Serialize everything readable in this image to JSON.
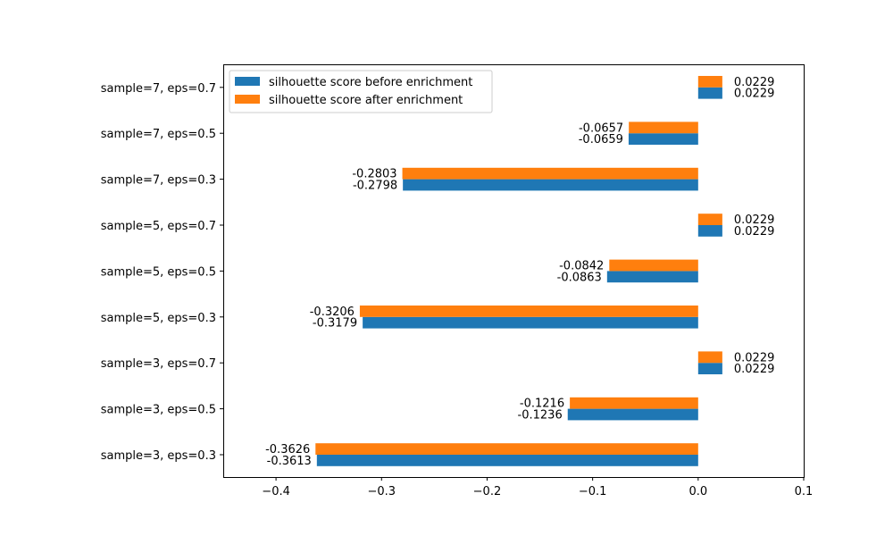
{
  "chart_data": {
    "type": "bar",
    "orientation": "horizontal",
    "title": "",
    "xlabel": "",
    "ylabel": "",
    "xlim": [
      -0.45,
      0.1
    ],
    "x_ticks": [
      -0.4,
      -0.3,
      -0.2,
      -0.1,
      0.0,
      0.1
    ],
    "x_tick_labels": [
      "−0.4",
      "−0.3",
      "−0.2",
      "−0.1",
      "0.0",
      "0.1"
    ],
    "grid": false,
    "legend_position": "top-left",
    "categories": [
      "sample=3, eps=0.3",
      "sample=3, eps=0.5",
      "sample=3, eps=0.7",
      "sample=5, eps=0.3",
      "sample=5, eps=0.5",
      "sample=5, eps=0.7",
      "sample=7, eps=0.3",
      "sample=7, eps=0.5",
      "sample=7, eps=0.7"
    ],
    "series": [
      {
        "name": "silhouette score before enrichment",
        "color": "#1f77b4",
        "values": [
          -0.3613,
          -0.1236,
          0.0229,
          -0.3179,
          -0.0863,
          0.0229,
          -0.2798,
          -0.0659,
          0.0229
        ],
        "labels": [
          "-0.3613",
          "-0.1236",
          "0.0229",
          "-0.3179",
          "-0.0863",
          "0.0229",
          "-0.2798",
          "-0.0659",
          "0.0229"
        ]
      },
      {
        "name": "silhouette score after enrichment",
        "color": "#ff7f0e",
        "values": [
          -0.3626,
          -0.1216,
          0.0229,
          -0.3206,
          -0.0842,
          0.0229,
          -0.2803,
          -0.0657,
          0.0229
        ],
        "labels": [
          "-0.3626",
          "-0.1216",
          "0.0229",
          "-0.3206",
          "-0.0842",
          "0.0229",
          "-0.2803",
          "-0.0657",
          "0.0229"
        ]
      }
    ]
  }
}
